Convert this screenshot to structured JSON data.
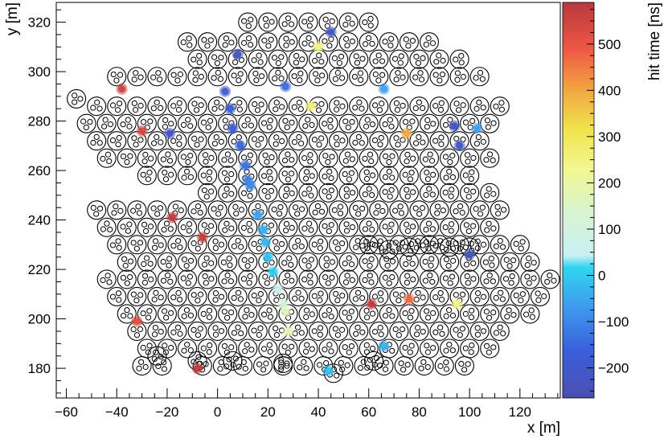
{
  "chart_data": {
    "type": "scatter",
    "title": "",
    "xlabel": "x [m]",
    "ylabel": "y [m]",
    "xlim": [
      -64,
      136
    ],
    "ylim": [
      168,
      328
    ],
    "xticks": [
      -60,
      -40,
      -20,
      0,
      20,
      40,
      60,
      80,
      100,
      120
    ],
    "yticks": [
      180,
      200,
      220,
      240,
      260,
      280,
      300,
      320
    ],
    "colorbar": {
      "label": "hit time [ns]",
      "range": [
        -265,
        590
      ],
      "ticks": [
        -200,
        -100,
        0,
        100,
        200,
        300,
        400,
        500
      ]
    },
    "grid": false,
    "legend": "none",
    "station_cluster_pattern": "three small PMT circles inside each station circle",
    "stations": [
      [
        -56,
        289
      ],
      [
        -48,
        286
      ],
      [
        -40,
        286
      ],
      [
        -32,
        286
      ],
      [
        -24,
        286
      ],
      [
        -16,
        286
      ],
      [
        -8,
        286
      ],
      [
        0,
        286
      ],
      [
        8,
        286
      ],
      [
        16,
        286
      ],
      [
        24,
        286
      ],
      [
        32,
        286
      ],
      [
        40,
        286
      ],
      [
        48,
        286
      ],
      [
        56,
        286
      ],
      [
        64,
        286
      ],
      [
        72,
        286
      ],
      [
        80,
        286
      ],
      [
        88,
        286
      ],
      [
        96,
        286
      ],
      [
        104,
        286
      ],
      [
        112,
        286
      ],
      [
        -52,
        279
      ],
      [
        -44,
        279
      ],
      [
        -36,
        279
      ],
      [
        -28,
        279
      ],
      [
        -20,
        279
      ],
      [
        -12,
        279
      ],
      [
        -4,
        279
      ],
      [
        4,
        279
      ],
      [
        12,
        279
      ],
      [
        20,
        279
      ],
      [
        28,
        279
      ],
      [
        36,
        279
      ],
      [
        44,
        279
      ],
      [
        52,
        279
      ],
      [
        60,
        279
      ],
      [
        68,
        279
      ],
      [
        76,
        279
      ],
      [
        84,
        279
      ],
      [
        92,
        279
      ],
      [
        100,
        279
      ],
      [
        108,
        279
      ],
      [
        -48,
        272
      ],
      [
        -40,
        272
      ],
      [
        -32,
        272
      ],
      [
        -24,
        272
      ],
      [
        -16,
        272
      ],
      [
        -8,
        272
      ],
      [
        0,
        272
      ],
      [
        8,
        272
      ],
      [
        16,
        272
      ],
      [
        24,
        272
      ],
      [
        32,
        272
      ],
      [
        40,
        272
      ],
      [
        48,
        272
      ],
      [
        56,
        272
      ],
      [
        64,
        272
      ],
      [
        72,
        272
      ],
      [
        80,
        272
      ],
      [
        88,
        272
      ],
      [
        96,
        272
      ],
      [
        104,
        272
      ],
      [
        -44,
        265
      ],
      [
        -36,
        265
      ],
      [
        -28,
        265
      ],
      [
        -20,
        265
      ],
      [
        -12,
        265
      ],
      [
        -4,
        265
      ],
      [
        4,
        265
      ],
      [
        12,
        265
      ],
      [
        20,
        265
      ],
      [
        28,
        265
      ],
      [
        36,
        265
      ],
      [
        44,
        265
      ],
      [
        52,
        265
      ],
      [
        60,
        265
      ],
      [
        68,
        265
      ],
      [
        76,
        265
      ],
      [
        84,
        265
      ],
      [
        92,
        265
      ],
      [
        100,
        265
      ],
      [
        108,
        265
      ],
      [
        -28,
        258
      ],
      [
        -20,
        258
      ],
      [
        -12,
        258
      ],
      [
        -4,
        258
      ],
      [
        4,
        258
      ],
      [
        12,
        258
      ],
      [
        20,
        258
      ],
      [
        28,
        258
      ],
      [
        36,
        258
      ],
      [
        44,
        258
      ],
      [
        52,
        258
      ],
      [
        60,
        258
      ],
      [
        68,
        258
      ],
      [
        76,
        258
      ],
      [
        84,
        258
      ],
      [
        92,
        258
      ],
      [
        100,
        258
      ],
      [
        -4,
        251
      ],
      [
        4,
        251
      ],
      [
        12,
        251
      ],
      [
        20,
        251
      ],
      [
        28,
        251
      ],
      [
        36,
        251
      ],
      [
        44,
        251
      ],
      [
        52,
        251
      ],
      [
        60,
        251
      ],
      [
        68,
        251
      ],
      [
        76,
        251
      ],
      [
        84,
        251
      ],
      [
        92,
        251
      ],
      [
        100,
        251
      ],
      [
        108,
        251
      ],
      [
        -12,
        312
      ],
      [
        -4,
        312
      ],
      [
        4,
        312
      ],
      [
        12,
        312
      ],
      [
        20,
        312
      ],
      [
        28,
        312
      ],
      [
        36,
        312
      ],
      [
        44,
        312
      ],
      [
        52,
        312
      ],
      [
        60,
        312
      ],
      [
        68,
        312
      ],
      [
        76,
        312
      ],
      [
        84,
        312
      ],
      [
        -8,
        305
      ],
      [
        0,
        305
      ],
      [
        8,
        305
      ],
      [
        16,
        305
      ],
      [
        24,
        305
      ],
      [
        32,
        305
      ],
      [
        40,
        305
      ],
      [
        48,
        305
      ],
      [
        56,
        305
      ],
      [
        64,
        305
      ],
      [
        72,
        305
      ],
      [
        80,
        305
      ],
      [
        88,
        305
      ],
      [
        96,
        305
      ],
      [
        -40,
        298
      ],
      [
        -32,
        298
      ],
      [
        -24,
        298
      ],
      [
        -16,
        298
      ],
      [
        -8,
        298
      ],
      [
        0,
        298
      ],
      [
        8,
        298
      ],
      [
        16,
        298
      ],
      [
        24,
        298
      ],
      [
        32,
        298
      ],
      [
        40,
        298
      ],
      [
        48,
        298
      ],
      [
        56,
        298
      ],
      [
        64,
        298
      ],
      [
        72,
        298
      ],
      [
        80,
        298
      ],
      [
        88,
        298
      ],
      [
        96,
        298
      ],
      [
        104,
        298
      ],
      [
        12,
        320
      ],
      [
        20,
        320
      ],
      [
        28,
        320
      ],
      [
        36,
        320
      ],
      [
        44,
        320
      ],
      [
        52,
        320
      ],
      [
        60,
        320
      ],
      [
        -48,
        244
      ],
      [
        -40,
        244
      ],
      [
        -32,
        244
      ],
      [
        -24,
        244
      ],
      [
        -16,
        244
      ],
      [
        -8,
        244
      ],
      [
        0,
        244
      ],
      [
        8,
        244
      ],
      [
        16,
        244
      ],
      [
        24,
        244
      ],
      [
        32,
        244
      ],
      [
        40,
        244
      ],
      [
        48,
        244
      ],
      [
        56,
        244
      ],
      [
        64,
        244
      ],
      [
        72,
        244
      ],
      [
        80,
        244
      ],
      [
        88,
        244
      ],
      [
        96,
        244
      ],
      [
        104,
        244
      ],
      [
        112,
        244
      ],
      [
        -44,
        237
      ],
      [
        -36,
        237
      ],
      [
        -28,
        237
      ],
      [
        -20,
        237
      ],
      [
        -12,
        237
      ],
      [
        -4,
        237
      ],
      [
        4,
        237
      ],
      [
        12,
        237
      ],
      [
        20,
        237
      ],
      [
        28,
        237
      ],
      [
        36,
        237
      ],
      [
        44,
        237
      ],
      [
        52,
        237
      ],
      [
        60,
        237
      ],
      [
        68,
        237
      ],
      [
        76,
        237
      ],
      [
        84,
        237
      ],
      [
        92,
        237
      ],
      [
        100,
        237
      ],
      [
        108,
        237
      ],
      [
        -40,
        230
      ],
      [
        -32,
        230
      ],
      [
        -24,
        230
      ],
      [
        -16,
        230
      ],
      [
        -8,
        230
      ],
      [
        0,
        230
      ],
      [
        8,
        230
      ],
      [
        16,
        230
      ],
      [
        24,
        230
      ],
      [
        32,
        230
      ],
      [
        40,
        230
      ],
      [
        48,
        230
      ],
      [
        56,
        230
      ],
      [
        64,
        230
      ],
      [
        72,
        230
      ],
      [
        80,
        230
      ],
      [
        88,
        230
      ],
      [
        96,
        230
      ],
      [
        104,
        230
      ],
      [
        112,
        230
      ],
      [
        120,
        230
      ],
      [
        -36,
        223
      ],
      [
        -28,
        223
      ],
      [
        -20,
        223
      ],
      [
        -12,
        223
      ],
      [
        -4,
        223
      ],
      [
        4,
        223
      ],
      [
        12,
        223
      ],
      [
        20,
        223
      ],
      [
        28,
        223
      ],
      [
        36,
        223
      ],
      [
        44,
        223
      ],
      [
        52,
        223
      ],
      [
        60,
        223
      ],
      [
        68,
        223
      ],
      [
        76,
        223
      ],
      [
        84,
        223
      ],
      [
        92,
        223
      ],
      [
        100,
        223
      ],
      [
        108,
        223
      ],
      [
        116,
        223
      ],
      [
        124,
        223
      ],
      [
        -44,
        216
      ],
      [
        -36,
        216
      ],
      [
        -28,
        216
      ],
      [
        -20,
        216
      ],
      [
        -12,
        216
      ],
      [
        -4,
        216
      ],
      [
        4,
        216
      ],
      [
        12,
        216
      ],
      [
        20,
        216
      ],
      [
        28,
        216
      ],
      [
        36,
        216
      ],
      [
        44,
        216
      ],
      [
        52,
        216
      ],
      [
        60,
        216
      ],
      [
        68,
        216
      ],
      [
        76,
        216
      ],
      [
        84,
        216
      ],
      [
        92,
        216
      ],
      [
        100,
        216
      ],
      [
        108,
        216
      ],
      [
        116,
        216
      ],
      [
        124,
        216
      ],
      [
        132,
        216
      ],
      [
        -40,
        209
      ],
      [
        -32,
        209
      ],
      [
        -24,
        209
      ],
      [
        -16,
        209
      ],
      [
        -8,
        209
      ],
      [
        0,
        209
      ],
      [
        8,
        209
      ],
      [
        16,
        209
      ],
      [
        24,
        209
      ],
      [
        32,
        209
      ],
      [
        40,
        209
      ],
      [
        48,
        209
      ],
      [
        56,
        209
      ],
      [
        64,
        209
      ],
      [
        72,
        209
      ],
      [
        80,
        209
      ],
      [
        88,
        209
      ],
      [
        96,
        209
      ],
      [
        104,
        209
      ],
      [
        112,
        209
      ],
      [
        120,
        209
      ],
      [
        128,
        209
      ],
      [
        -36,
        202
      ],
      [
        -28,
        202
      ],
      [
        -20,
        202
      ],
      [
        -12,
        202
      ],
      [
        -4,
        202
      ],
      [
        4,
        202
      ],
      [
        12,
        202
      ],
      [
        20,
        202
      ],
      [
        28,
        202
      ],
      [
        36,
        202
      ],
      [
        44,
        202
      ],
      [
        52,
        202
      ],
      [
        60,
        202
      ],
      [
        68,
        202
      ],
      [
        76,
        202
      ],
      [
        84,
        202
      ],
      [
        92,
        202
      ],
      [
        100,
        202
      ],
      [
        108,
        202
      ],
      [
        116,
        202
      ],
      [
        124,
        202
      ],
      [
        -32,
        195
      ],
      [
        -24,
        195
      ],
      [
        -16,
        195
      ],
      [
        -8,
        195
      ],
      [
        0,
        195
      ],
      [
        8,
        195
      ],
      [
        16,
        195
      ],
      [
        24,
        195
      ],
      [
        32,
        195
      ],
      [
        40,
        195
      ],
      [
        48,
        195
      ],
      [
        56,
        195
      ],
      [
        64,
        195
      ],
      [
        72,
        195
      ],
      [
        80,
        195
      ],
      [
        88,
        195
      ],
      [
        96,
        195
      ],
      [
        104,
        195
      ],
      [
        112,
        195
      ],
      [
        -28,
        188
      ],
      [
        -20,
        188
      ],
      [
        -12,
        188
      ],
      [
        -4,
        188
      ],
      [
        4,
        188
      ],
      [
        12,
        188
      ],
      [
        20,
        188
      ],
      [
        28,
        188
      ],
      [
        36,
        188
      ],
      [
        44,
        188
      ],
      [
        52,
        188
      ],
      [
        60,
        188
      ],
      [
        68,
        188
      ],
      [
        76,
        188
      ],
      [
        84,
        188
      ],
      [
        92,
        188
      ],
      [
        100,
        188
      ],
      [
        108,
        188
      ],
      [
        -30,
        181
      ],
      [
        -22,
        181
      ],
      [
        -6,
        181
      ],
      [
        2,
        181
      ],
      [
        10,
        181
      ],
      [
        18,
        181
      ],
      [
        26,
        181
      ],
      [
        34,
        181
      ],
      [
        42,
        181
      ],
      [
        50,
        181
      ],
      [
        58,
        181
      ],
      [
        66,
        181
      ],
      [
        74,
        181
      ],
      [
        82,
        181
      ],
      [
        90,
        181
      ],
      [
        98,
        181
      ],
      [
        -24,
        185
      ],
      [
        -8,
        183
      ],
      [
        6,
        183
      ],
      [
        26,
        182
      ],
      [
        46,
        178
      ],
      [
        62,
        183
      ],
      [
        60,
        230
      ],
      [
        68,
        228
      ],
      [
        76,
        229
      ],
      [
        84,
        230
      ],
      [
        92,
        229
      ],
      [
        100,
        229
      ]
    ],
    "hits": [
      {
        "x": 45,
        "y": 316,
        "t": -220
      },
      {
        "x": 40,
        "y": 310,
        "t": 240
      },
      {
        "x": 8,
        "y": 307,
        "t": -230
      },
      {
        "x": -38,
        "y": 293,
        "t": 560
      },
      {
        "x": 3,
        "y": 292,
        "t": -200
      },
      {
        "x": 27,
        "y": 294,
        "t": -140
      },
      {
        "x": 66,
        "y": 293,
        "t": -60
      },
      {
        "x": 5,
        "y": 285,
        "t": -180
      },
      {
        "x": 37,
        "y": 286,
        "t": 260
      },
      {
        "x": -30,
        "y": 276,
        "t": 540
      },
      {
        "x": -19,
        "y": 275,
        "t": -210
      },
      {
        "x": 6,
        "y": 277,
        "t": -170
      },
      {
        "x": 9,
        "y": 270,
        "t": -150
      },
      {
        "x": 11,
        "y": 262,
        "t": -130
      },
      {
        "x": 75,
        "y": 275,
        "t": 400
      },
      {
        "x": 94,
        "y": 278,
        "t": -230
      },
      {
        "x": 96,
        "y": 270,
        "t": -220
      },
      {
        "x": 103,
        "y": 277,
        "t": -60
      },
      {
        "x": 12,
        "y": 256,
        "t": -110
      },
      {
        "x": 13,
        "y": 254,
        "t": -95
      },
      {
        "x": -18,
        "y": 241,
        "t": 580
      },
      {
        "x": 16,
        "y": 242,
        "t": -60
      },
      {
        "x": 18,
        "y": 236,
        "t": -40
      },
      {
        "x": 19,
        "y": 231,
        "t": -25
      },
      {
        "x": 20,
        "y": 225,
        "t": -10
      },
      {
        "x": -6,
        "y": 233,
        "t": 570
      },
      {
        "x": 22,
        "y": 219,
        "t": 10
      },
      {
        "x": 24,
        "y": 212,
        "t": 60
      },
      {
        "x": 26,
        "y": 206,
        "t": 110
      },
      {
        "x": 27,
        "y": 203,
        "t": 170
      },
      {
        "x": 61,
        "y": 206,
        "t": 580
      },
      {
        "x": 76,
        "y": 208,
        "t": 470
      },
      {
        "x": 95,
        "y": 206,
        "t": 240
      },
      {
        "x": 100,
        "y": 226,
        "t": -240
      },
      {
        "x": -32,
        "y": 199,
        "t": 520
      },
      {
        "x": 28,
        "y": 195,
        "t": 180
      },
      {
        "x": 66,
        "y": 189,
        "t": -40
      },
      {
        "x": 44,
        "y": 179,
        "t": -10
      },
      {
        "x": -8,
        "y": 180,
        "t": 580
      }
    ]
  }
}
